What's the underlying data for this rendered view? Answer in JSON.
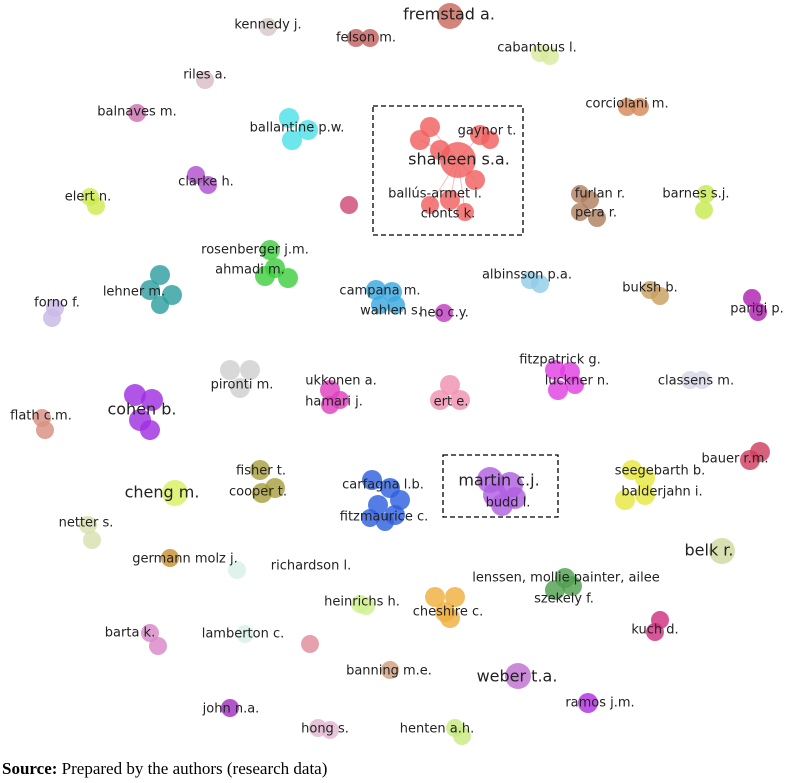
{
  "nodes": [
    {
      "label": "kennedy j."
    },
    {
      "label": "fremstad a."
    },
    {
      "label": "felson m."
    },
    {
      "label": "cabantous l."
    },
    {
      "label": "riles a."
    },
    {
      "label": "balnaves m."
    },
    {
      "label": "ballantine p.w."
    },
    {
      "label": "corciolani m."
    },
    {
      "label": "shaheen s.a."
    },
    {
      "label": "gaynor t."
    },
    {
      "label": "ballús-armet i."
    },
    {
      "label": "clonts k."
    },
    {
      "label": "clarke h."
    },
    {
      "label": "elert n."
    },
    {
      "label": "furlan r."
    },
    {
      "label": "pera r."
    },
    {
      "label": "barnes s.j."
    },
    {
      "label": "rosenberger j.m."
    },
    {
      "label": "ahmadi m."
    },
    {
      "label": "lehner m."
    },
    {
      "label": "albinsson p.a."
    },
    {
      "label": "forno f."
    },
    {
      "label": "buksh b."
    },
    {
      "label": "campana m."
    },
    {
      "label": "wahlen s."
    },
    {
      "label": "heo c.y."
    },
    {
      "label": "parigi p."
    },
    {
      "label": "fitzpatrick g."
    },
    {
      "label": "luckner n."
    },
    {
      "label": "pironti m."
    },
    {
      "label": "ukkonen a."
    },
    {
      "label": "hamari j."
    },
    {
      "label": "ert e."
    },
    {
      "label": "classens m."
    },
    {
      "label": "cohen b."
    },
    {
      "label": "flath c.m."
    },
    {
      "label": "bauer r.m."
    },
    {
      "label": "martin c.j."
    },
    {
      "label": "budd l."
    },
    {
      "label": "seegebarth b."
    },
    {
      "label": "balderjahn i."
    },
    {
      "label": "fisher t."
    },
    {
      "label": "cooper t."
    },
    {
      "label": "cheng m."
    },
    {
      "label": "carfagna l.b."
    },
    {
      "label": "fitzmaurice c."
    },
    {
      "label": "netter s."
    },
    {
      "label": "belk r."
    },
    {
      "label": "germann molz j."
    },
    {
      "label": "richardson l."
    },
    {
      "label": "lenssen, mollie painter, ailee"
    },
    {
      "label": "szekely f."
    },
    {
      "label": "heinrichs h."
    },
    {
      "label": "cheshire c."
    },
    {
      "label": "barta k."
    },
    {
      "label": "lamberton c."
    },
    {
      "label": "kuch d."
    },
    {
      "label": "banning m.e."
    },
    {
      "label": "weber t.a."
    },
    {
      "label": "ramos j.m."
    },
    {
      "label": "john n.a."
    },
    {
      "label": "hong s."
    },
    {
      "label": "henten a.h."
    }
  ],
  "caption": {
    "prefix": "Source:",
    "text": "Prepared by the authors (research data)"
  }
}
